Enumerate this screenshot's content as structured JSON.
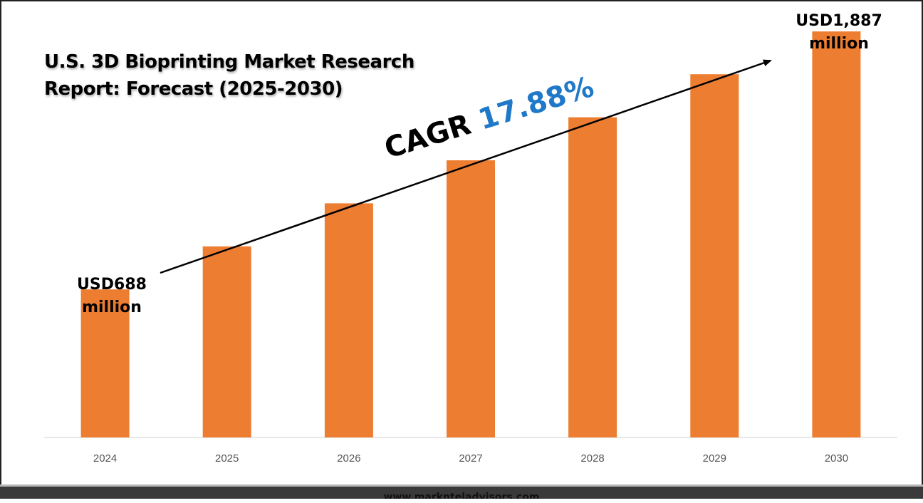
{
  "chart_data": {
    "type": "bar",
    "title": "U.S. 3D Bioprinting Market Research Report: Forecast (2025-2030)",
    "categories": [
      "2024",
      "2025",
      "2026",
      "2027",
      "2028",
      "2029",
      "2030"
    ],
    "values": [
      688,
      888,
      1088,
      1288,
      1488,
      1688,
      1887
    ],
    "xlabel": "",
    "ylabel": "",
    "unit": "USD million",
    "ylim": [
      0,
      2000
    ],
    "grid": false,
    "bar_color": "#ed7d31",
    "annotations": {
      "cagr_label": "CAGR",
      "cagr_value": "17.88%",
      "start_line1": "USD688",
      "start_line2": "million",
      "end_line1": "USD1,887",
      "end_line2": "million"
    }
  },
  "colors": {
    "bar": "#ed7d31",
    "cagr_value": "#1f78c8",
    "axis": "#d0d0d0"
  },
  "footer": {
    "source": "www.marknteladvisors.com"
  }
}
